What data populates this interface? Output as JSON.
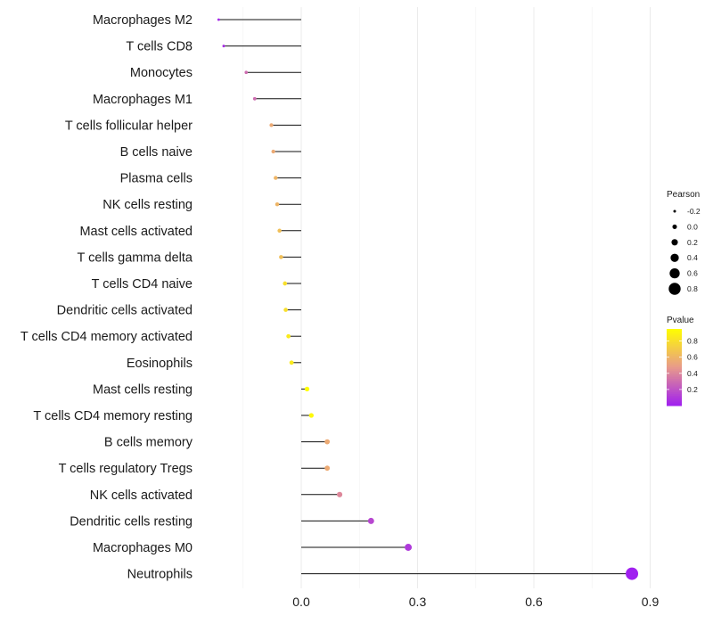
{
  "chart_data": {
    "type": "lollipop",
    "title": "",
    "xlabel": "",
    "ylabel": "",
    "xlim": [
      -0.2,
      0.92
    ],
    "xticks": [
      0.0,
      0.3,
      0.6,
      0.9
    ],
    "xtick_labels": [
      "0.0",
      "0.3",
      "0.6",
      "0.9"
    ],
    "grid": "vertical",
    "baseline": 0.0,
    "categories": [
      "Macrophages M2",
      "T cells CD8",
      "Monocytes",
      "Macrophages M1",
      "T cells follicular helper",
      "B cells naive",
      "Plasma cells",
      "NK cells resting",
      "Mast cells activated",
      "T cells gamma delta",
      "T cells CD4 naive",
      "Dendritic cells activated",
      "T cells CD4 memory activated",
      "Eosinophils",
      "Mast cells resting",
      "T cells CD4 memory resting",
      "B cells memory",
      "T cells regulatory  Tregs",
      "NK cells activated",
      "Dendritic cells resting",
      "Macrophages M0",
      "Neutrophils"
    ],
    "pearson": [
      -0.213,
      -0.2,
      -0.142,
      -0.12,
      -0.077,
      -0.072,
      -0.066,
      -0.062,
      -0.056,
      -0.052,
      -0.042,
      -0.04,
      -0.033,
      -0.025,
      0.015,
      0.026,
      0.067,
      0.067,
      0.099,
      0.18,
      0.276,
      0.853
    ],
    "pvalue": [
      0.03,
      0.05,
      0.3,
      0.3,
      0.55,
      0.55,
      0.6,
      0.6,
      0.65,
      0.65,
      0.8,
      0.8,
      0.85,
      0.85,
      0.95,
      0.92,
      0.55,
      0.55,
      0.4,
      0.15,
      0.1,
      0.001
    ],
    "legend": {
      "size_title": "Pearson",
      "size_entries": [
        {
          "label": "-0.2",
          "value": -0.2
        },
        {
          "label": "0.0",
          "value": 0.0
        },
        {
          "label": "0.2",
          "value": 0.2
        },
        {
          "label": "0.4",
          "value": 0.4
        },
        {
          "label": "0.6",
          "value": 0.6
        },
        {
          "label": "0.8",
          "value": 0.8
        }
      ],
      "color_title": "Pvalue",
      "color_ticks": [
        {
          "label": "0.8",
          "value": 0.8
        },
        {
          "label": "0.6",
          "value": 0.6
        },
        {
          "label": "0.4",
          "value": 0.4
        },
        {
          "label": "0.2",
          "value": 0.2
        }
      ],
      "color_range": [
        0.0,
        0.95
      ],
      "color_low": "#a020f0",
      "color_high": "#ffff00",
      "position": "right"
    }
  }
}
